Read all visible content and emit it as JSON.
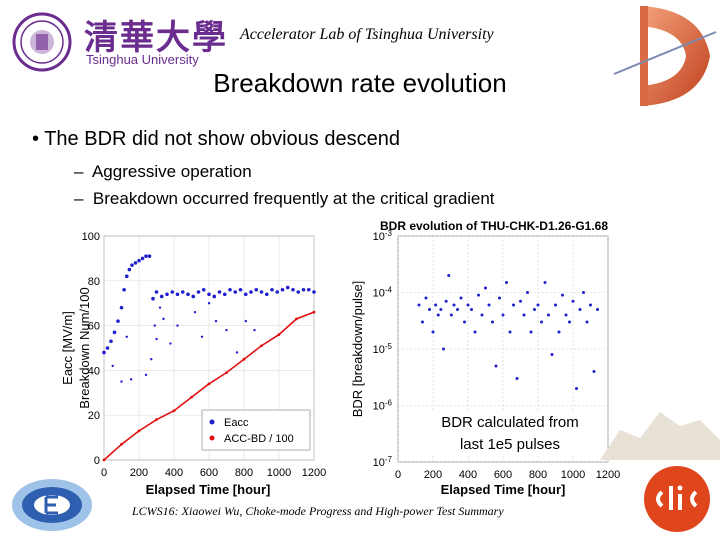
{
  "header": {
    "logo_cn": "清華大學",
    "logo_en": "Tsinghua University",
    "lab": "Accelerator Lab of Tsinghua University",
    "title": "Breakdown rate evolution"
  },
  "bullets": {
    "main": "The BDR did not show obvious descend",
    "subs": [
      "Aggressive operation",
      "Breakdown occurred frequently at the critical gradient"
    ]
  },
  "note": {
    "line1": "BDR calculated from",
    "line2": "last 1e5 pulses"
  },
  "footer": {
    "text": "LCWS16: Xiaowei Wu, Choke-mode Progress and High-power Test Summary"
  },
  "icons": {
    "seal": "tsinghua-seal-icon",
    "cavity": "cavity-model-icon",
    "left": "accelerator-logo-icon",
    "clic": "clic-logo-icon"
  },
  "colors": {
    "eacc": "#1f1fd0",
    "accbd": "#e01010",
    "text": "#000000",
    "logo_purple": "#6a2c8e"
  },
  "chart_data": [
    {
      "type": "scatter",
      "title": "",
      "xlabel": "Elapsed Time [hour]",
      "ylabel": "Eacc [MV/m]",
      "ylabel2": "Breakdown Num/100",
      "xlim": [
        0,
        1200
      ],
      "ylim": [
        0,
        100
      ],
      "xticks": [
        0,
        200,
        400,
        600,
        800,
        1000,
        1200
      ],
      "yticks": [
        0,
        20,
        40,
        60,
        80,
        100
      ],
      "legend": {
        "position": "bottom-right",
        "entries": [
          "Eacc",
          "ACC-BD / 100"
        ]
      },
      "series": [
        {
          "name": "Eacc",
          "style": "dots",
          "x": [
            0,
            20,
            40,
            60,
            80,
            100,
            115,
            130,
            145,
            160,
            180,
            200,
            220,
            240,
            260,
            280,
            300,
            330,
            360,
            390,
            420,
            450,
            480,
            510,
            540,
            570,
            600,
            630,
            660,
            690,
            720,
            750,
            780,
            810,
            840,
            870,
            900,
            930,
            960,
            990,
            1020,
            1050,
            1080,
            1110,
            1140,
            1170,
            1200
          ],
          "y": [
            48,
            50,
            53,
            57,
            62,
            68,
            76,
            82,
            85,
            87,
            88,
            89,
            90,
            91,
            91,
            72,
            75,
            73,
            74,
            75,
            74,
            75,
            74,
            73,
            75,
            76,
            74,
            73,
            75,
            74,
            76,
            75,
            76,
            74,
            75,
            76,
            75,
            74,
            76,
            75,
            76,
            77,
            76,
            75,
            76,
            76,
            75
          ]
        },
        {
          "name": "ACC-BD / 100",
          "style": "line",
          "x": [
            0,
            100,
            200,
            300,
            400,
            500,
            600,
            700,
            800,
            900,
            1000,
            1100,
            1200
          ],
          "y": [
            0,
            7,
            13,
            18,
            22,
            28,
            34,
            39,
            45,
            51,
            56,
            63,
            66
          ]
        }
      ],
      "outliers": {
        "x": [
          20,
          50,
          100,
          130,
          155,
          240,
          270,
          290,
          300,
          320,
          340,
          380,
          420,
          520,
          560,
          600,
          640,
          700,
          760,
          810,
          860
        ],
        "y": [
          50,
          42,
          35,
          55,
          36,
          38,
          45,
          60,
          54,
          68,
          63,
          52,
          60,
          66,
          55,
          70,
          62,
          58,
          48,
          62,
          58
        ]
      }
    },
    {
      "type": "scatter",
      "title": "BDR evolution of THU-CHK-D1.26-G1.68",
      "xlabel": "Elapsed Time [hour]",
      "ylabel": "BDR [breakdown/pulse]",
      "xlim": [
        0,
        1200
      ],
      "ylim": [
        1e-07,
        0.001
      ],
      "yscale": "log",
      "xticks": [
        0,
        200,
        400,
        600,
        800,
        1000,
        1200
      ],
      "ytick_labels": [
        "10^-7",
        "10^-6",
        "10^-5",
        "10^-4",
        "10^-3"
      ],
      "grid": true,
      "series": [
        {
          "name": "",
          "x": [
            120,
            140,
            160,
            180,
            200,
            215,
            230,
            245,
            260,
            275,
            290,
            305,
            320,
            340,
            360,
            380,
            400,
            420,
            440,
            460,
            480,
            500,
            520,
            540,
            560,
            580,
            600,
            620,
            640,
            660,
            680,
            700,
            720,
            740,
            760,
            780,
            800,
            820,
            840,
            860,
            880,
            900,
            920,
            940,
            960,
            980,
            1000,
            1020,
            1040,
            1060,
            1080,
            1100,
            1120,
            1140
          ],
          "y": [
            6e-05,
            3e-05,
            8e-05,
            5e-05,
            2e-05,
            6e-05,
            4e-05,
            5e-05,
            1e-05,
            7e-05,
            0.0002,
            4e-05,
            6e-05,
            5e-05,
            8e-05,
            3e-05,
            6e-05,
            5e-05,
            2e-05,
            9e-05,
            4e-05,
            0.00012,
            6e-05,
            3e-05,
            5e-06,
            8e-05,
            4e-05,
            0.00015,
            2e-05,
            6e-05,
            3e-06,
            7e-05,
            4e-05,
            0.0001,
            2e-05,
            5e-05,
            6e-05,
            3e-05,
            0.00015,
            4e-05,
            8e-06,
            6e-05,
            2e-05,
            9e-05,
            4e-05,
            3e-05,
            7e-05,
            2e-06,
            5e-05,
            0.0001,
            3e-05,
            6e-05,
            4e-06,
            5e-05
          ]
        }
      ]
    }
  ]
}
